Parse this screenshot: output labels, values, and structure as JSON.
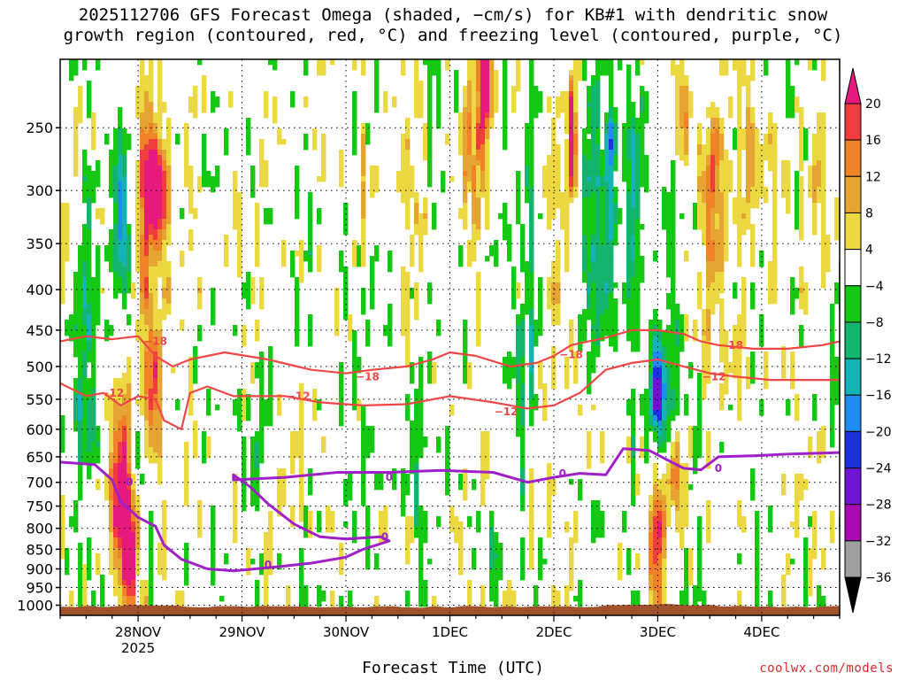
{
  "title_lines": [
    "2025112706 GFS Forecast Omega (shaded, −cm/s) for KB#1 with dendritic snow",
    "growth region (contoured, red, °C) and freezing level (contoured, purple, °C)"
  ],
  "credit": "coolwx.com/models",
  "chart_data": {
    "type": "heatmap",
    "title": "2025112706 GFS Forecast Omega (shaded, −cm/s) for KB#1 with dendritic snow growth region (contoured, red, °C) and freezing level (contoured, purple, °C)",
    "xlabel": "Forecast Time (UTC)",
    "ylabel": "",
    "x_axis": {
      "unit": "hours after 2025-11-27 06 UTC",
      "range": [
        0,
        180
      ],
      "ticks": [
        {
          "hour": 18,
          "label": "28NOV",
          "sub": "2025"
        },
        {
          "hour": 42,
          "label": "29NOV"
        },
        {
          "hour": 66,
          "label": "30NOV"
        },
        {
          "hour": 90,
          "label": "1DEC"
        },
        {
          "hour": 114,
          "label": "2DEC"
        },
        {
          "hour": 138,
          "label": "3DEC"
        },
        {
          "hour": 162,
          "label": "4DEC"
        }
      ]
    },
    "y_axis": {
      "unit": "hPa",
      "scale": "log",
      "range": [
        1030,
        205
      ],
      "ticks": [
        250,
        300,
        350,
        400,
        450,
        500,
        550,
        600,
        650,
        700,
        750,
        800,
        850,
        900,
        950,
        1000
      ],
      "grid": "dotted"
    },
    "colorbar": {
      "labels": [
        "20",
        "16",
        "12",
        "8",
        "4",
        "−4",
        "−8",
        "−12",
        "−16",
        "−20",
        "−24",
        "−28",
        "−32",
        "−36"
      ],
      "bins": [
        {
          "min": 20,
          "max": null,
          "color": "#e6197f"
        },
        {
          "min": 16,
          "max": 20,
          "color": "#f03c3c"
        },
        {
          "min": 12,
          "max": 16,
          "color": "#f08228"
        },
        {
          "min": 8,
          "max": 12,
          "color": "#e6a532"
        },
        {
          "min": 4,
          "max": 8,
          "color": "#ecd841"
        },
        {
          "min": -4,
          "max": 4,
          "color": "#ffffff"
        },
        {
          "min": -8,
          "max": -4,
          "color": "#14c814"
        },
        {
          "min": -12,
          "max": -8,
          "color": "#14b46e"
        },
        {
          "min": -16,
          "max": -12,
          "color": "#14b4b4"
        },
        {
          "min": -20,
          "max": -16,
          "color": "#1e8cf0"
        },
        {
          "min": -24,
          "max": -20,
          "color": "#1e32dc"
        },
        {
          "min": -28,
          "max": -24,
          "color": "#6e14d2"
        },
        {
          "min": -32,
          "max": -28,
          "color": "#aa0ab4"
        },
        {
          "min": -36,
          "max": -32,
          "color": "#a0a0a0"
        },
        {
          "min": null,
          "max": -36,
          "color": "#000000"
        }
      ]
    },
    "omega_features": [
      {
        "t": 6,
        "p": 470,
        "w": 2.5,
        "h": 0.45,
        "v": -12
      },
      {
        "t": 14,
        "p": 330,
        "w": 2,
        "h": 0.25,
        "v": -20
      },
      {
        "t": 14,
        "p": 700,
        "w": 2.5,
        "h": 0.3,
        "v": 22
      },
      {
        "t": 16,
        "p": 850,
        "w": 2,
        "h": 0.2,
        "v": 20
      },
      {
        "t": 20,
        "p": 300,
        "w": 4,
        "h": 0.25,
        "v": 14
      },
      {
        "t": 22,
        "p": 300,
        "w": 2.5,
        "h": 0.15,
        "v": 22
      },
      {
        "t": 21,
        "p": 500,
        "w": 2,
        "h": 0.25,
        "v": 18
      },
      {
        "t": 24,
        "p": 520,
        "w": 2,
        "h": 0.3,
        "v": 6
      },
      {
        "t": 18,
        "p": 650,
        "w": 2,
        "h": 0.15,
        "v": -8
      },
      {
        "t": 30,
        "p": 320,
        "w": 1,
        "h": 0.1,
        "v": 6
      },
      {
        "t": 46,
        "p": 650,
        "w": 1.2,
        "h": 0.2,
        "v": -6
      },
      {
        "t": 70,
        "p": 300,
        "w": 1.2,
        "h": 0.2,
        "v": 6
      },
      {
        "t": 80,
        "p": 300,
        "w": 3,
        "h": 0.35,
        "v": 6
      },
      {
        "t": 82,
        "p": 600,
        "w": 1.5,
        "h": 0.3,
        "v": -8
      },
      {
        "t": 96,
        "p": 250,
        "w": 3,
        "h": 0.3,
        "v": 12
      },
      {
        "t": 98,
        "p": 220,
        "w": 1.2,
        "h": 0.15,
        "v": 22
      },
      {
        "t": 100,
        "p": 850,
        "w": 1.2,
        "h": 0.12,
        "v": -12
      },
      {
        "t": 108,
        "p": 380,
        "w": 2.5,
        "h": 0.45,
        "v": -8
      },
      {
        "t": 114,
        "p": 300,
        "w": 2,
        "h": 0.4,
        "v": 6
      },
      {
        "t": 118,
        "p": 260,
        "w": 1,
        "h": 0.2,
        "v": 18
      },
      {
        "t": 123,
        "p": 320,
        "w": 2.5,
        "h": 0.4,
        "v": -10
      },
      {
        "t": 127,
        "p": 300,
        "w": 1.8,
        "h": 0.35,
        "v": -16
      },
      {
        "t": 130,
        "p": 330,
        "w": 1.8,
        "h": 0.3,
        "v": 6
      },
      {
        "t": 132,
        "p": 300,
        "w": 2.5,
        "h": 0.45,
        "v": -10
      },
      {
        "t": 135,
        "p": 400,
        "w": 1.5,
        "h": 0.25,
        "v": -6
      },
      {
        "t": 138,
        "p": 800,
        "w": 2,
        "h": 0.25,
        "v": 8
      },
      {
        "t": 138,
        "p": 530,
        "w": 1.8,
        "h": 0.15,
        "v": -26
      },
      {
        "t": 142,
        "p": 650,
        "w": 2,
        "h": 0.15,
        "v": 14
      },
      {
        "t": 141,
        "p": 560,
        "w": 2.5,
        "h": 0.2,
        "v": -12
      },
      {
        "t": 144,
        "p": 240,
        "w": 2,
        "h": 0.15,
        "v": 8
      },
      {
        "t": 150,
        "p": 350,
        "w": 3,
        "h": 0.3,
        "v": 9
      },
      {
        "t": 151,
        "p": 270,
        "w": 2,
        "h": 0.2,
        "v": 12
      },
      {
        "t": 160,
        "p": 280,
        "w": 3,
        "h": 0.3,
        "v": 6
      },
      {
        "t": 176,
        "p": 290,
        "w": 3,
        "h": 0.25,
        "v": 5
      },
      {
        "t": 178,
        "p": 530,
        "w": 1.2,
        "h": 0.3,
        "v": -6
      },
      {
        "t": 138,
        "p": 850,
        "w": 1.5,
        "h": 0.15,
        "v": 14
      }
    ],
    "contours": [
      {
        "name": "dendritic-top-minus18",
        "level": -18,
        "label": "−18",
        "color": "#f04646",
        "points": [
          [
            0,
            465
          ],
          [
            6,
            458
          ],
          [
            12,
            462
          ],
          [
            18,
            458
          ],
          [
            22,
            485
          ],
          [
            26,
            500
          ],
          [
            30,
            490
          ],
          [
            38,
            480
          ],
          [
            48,
            490
          ],
          [
            58,
            505
          ],
          [
            66,
            510
          ],
          [
            72,
            505
          ],
          [
            80,
            500
          ],
          [
            86,
            490
          ],
          [
            90,
            480
          ],
          [
            96,
            485
          ],
          [
            104,
            500
          ],
          [
            110,
            495
          ],
          [
            114,
            485
          ],
          [
            118,
            470
          ],
          [
            126,
            460
          ],
          [
            132,
            450
          ],
          [
            138,
            450
          ],
          [
            144,
            455
          ],
          [
            148,
            465
          ],
          [
            152,
            470
          ],
          [
            160,
            475
          ],
          [
            168,
            475
          ],
          [
            176,
            470
          ],
          [
            180,
            465
          ]
        ],
        "labels_at": [
          [
            22,
            465
          ],
          [
            71,
            515
          ],
          [
            118,
            483
          ],
          [
            155,
            470
          ]
        ]
      },
      {
        "name": "dendritic-bottom-minus12",
        "level": -12,
        "label": "−12",
        "color": "#f04646",
        "points": [
          [
            0,
            525
          ],
          [
            6,
            545
          ],
          [
            10,
            540
          ],
          [
            14,
            560
          ],
          [
            18,
            545
          ],
          [
            22,
            550
          ],
          [
            24,
            585
          ],
          [
            28,
            600
          ],
          [
            30,
            540
          ],
          [
            34,
            530
          ],
          [
            40,
            545
          ],
          [
            52,
            545
          ],
          [
            60,
            555
          ],
          [
            70,
            560
          ],
          [
            80,
            558
          ],
          [
            90,
            545
          ],
          [
            100,
            555
          ],
          [
            108,
            565
          ],
          [
            114,
            560
          ],
          [
            120,
            540
          ],
          [
            126,
            505
          ],
          [
            132,
            495
          ],
          [
            138,
            490
          ],
          [
            144,
            500
          ],
          [
            150,
            510
          ],
          [
            156,
            515
          ],
          [
            164,
            520
          ],
          [
            172,
            520
          ],
          [
            180,
            520
          ]
        ],
        "labels_at": [
          [
            12,
            540
          ],
          [
            55,
            545
          ],
          [
            103,
            570
          ],
          [
            151,
            515
          ]
        ]
      },
      {
        "name": "freezing-level-0",
        "level": 0,
        "label": "0",
        "color": "#a020c8",
        "points": [
          [
            0,
            660
          ],
          [
            8,
            665
          ],
          [
            12,
            695
          ],
          [
            14,
            740
          ],
          [
            18,
            775
          ],
          [
            22,
            795
          ],
          [
            24,
            840
          ],
          [
            28,
            875
          ],
          [
            34,
            900
          ],
          [
            40,
            905
          ],
          [
            50,
            895
          ],
          [
            58,
            885
          ],
          [
            66,
            870
          ],
          [
            70,
            850
          ],
          [
            76,
            830
          ],
          [
            74,
            820
          ],
          [
            66,
            825
          ],
          [
            60,
            820
          ],
          [
            54,
            790
          ],
          [
            48,
            745
          ],
          [
            44,
            710
          ],
          [
            40,
            685
          ],
          [
            40,
            695
          ],
          [
            52,
            690
          ],
          [
            64,
            680
          ],
          [
            76,
            680
          ],
          [
            88,
            676
          ],
          [
            100,
            680
          ],
          [
            108,
            700
          ],
          [
            114,
            690
          ],
          [
            120,
            682
          ],
          [
            126,
            685
          ],
          [
            130,
            635
          ],
          [
            136,
            638
          ],
          [
            140,
            655
          ],
          [
            144,
            672
          ],
          [
            148,
            675
          ],
          [
            152,
            650
          ],
          [
            160,
            648
          ],
          [
            168,
            645
          ],
          [
            180,
            642
          ]
        ],
        "labels_at": [
          [
            16,
            700
          ],
          [
            48,
            890
          ],
          [
            75,
            820
          ],
          [
            76,
            690
          ],
          [
            116,
            683
          ],
          [
            152,
            672
          ]
        ]
      }
    ],
    "terrain": {
      "name": "ground",
      "color": "#a0522d",
      "pressure": 1010
    }
  }
}
